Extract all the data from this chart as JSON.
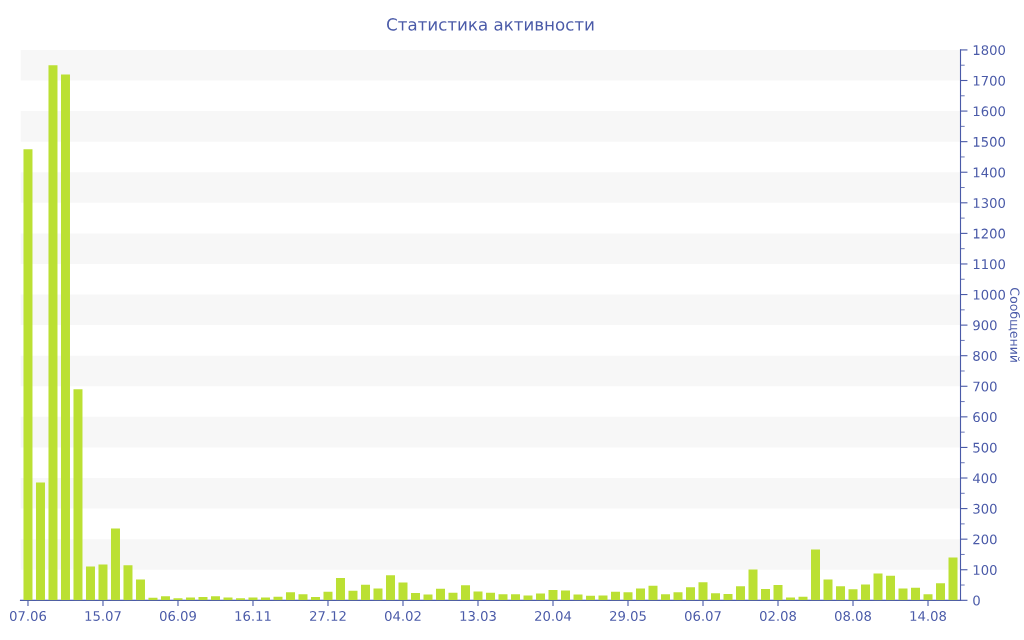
{
  "chart_data": {
    "type": "bar",
    "title": "Статистика активности",
    "ylabel": "Сообщений",
    "categories": [
      "07.06",
      null,
      null,
      null,
      null,
      null,
      "15.07",
      null,
      null,
      null,
      null,
      null,
      "06.09",
      null,
      null,
      null,
      null,
      null,
      "16.11",
      null,
      null,
      null,
      null,
      null,
      "27.12",
      null,
      null,
      null,
      null,
      null,
      "04.02",
      null,
      null,
      null,
      null,
      null,
      "13.03",
      null,
      null,
      null,
      null,
      null,
      "20.04",
      null,
      null,
      null,
      null,
      null,
      "29.05",
      null,
      null,
      null,
      null,
      null,
      "06.07",
      null,
      null,
      null,
      null,
      null,
      "02.08",
      null,
      null,
      null,
      null,
      null,
      "08.08",
      null,
      null,
      null,
      null,
      null,
      "14.08",
      null,
      null
    ],
    "values": [
      1475,
      385,
      1750,
      1720,
      690,
      111,
      117,
      235,
      115,
      68,
      8,
      13,
      7,
      9,
      11,
      13,
      9,
      7,
      9,
      9,
      12,
      26,
      20,
      11,
      28,
      73,
      31,
      51,
      39,
      82,
      58,
      24,
      19,
      38,
      25,
      49,
      29,
      25,
      20,
      20,
      16,
      22,
      34,
      32,
      19,
      15,
      16,
      28,
      26,
      39,
      48,
      20,
      26,
      43,
      59,
      23,
      21,
      46,
      101,
      37,
      50,
      9,
      12,
      166,
      68,
      46,
      36,
      52,
      88,
      80,
      39,
      41,
      20,
      56,
      140
    ],
    "color": "#bbe033",
    "ylim": [
      0,
      1800
    ],
    "yticks": [
      0,
      100,
      200,
      300,
      400,
      500,
      600,
      700,
      800,
      900,
      1000,
      1100,
      1200,
      1300,
      1400,
      1500,
      1600,
      1700,
      1800
    ],
    "legend": false
  }
}
